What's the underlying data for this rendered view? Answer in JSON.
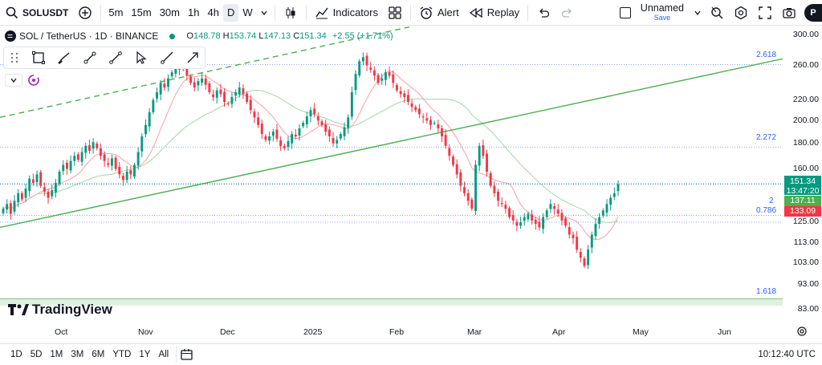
{
  "topbar": {
    "symbol": "SOLUSDT",
    "timeframes": [
      "5m",
      "15m",
      "30m",
      "1h",
      "4h",
      "D",
      "W"
    ],
    "active_timeframe": "D",
    "indicators_label": "Indicators",
    "alert_label": "Alert",
    "replay_label": "Replay",
    "layout_name": "Unnamed",
    "save_label": "Save",
    "avatar_letter": "P"
  },
  "legend": {
    "symbol": "SOL / TetherUS · 1D · BINANCE",
    "o_label": "O",
    "o": "148.78",
    "h_label": "H",
    "h": "153.74",
    "l_label": "L",
    "l": "147.13",
    "c_label": "C",
    "c": "151.34",
    "change": "+2.55 (+1.71%)"
  },
  "price_axis": {
    "labels": [
      "300.00",
      "260.00",
      "220.00",
      "200.00",
      "180.00",
      "160.00",
      "125.00",
      "113.00",
      "103.00",
      "93.00",
      "83.00"
    ]
  },
  "badges": {
    "last_price": "151.34",
    "countdown": "13:47:20",
    "ma_fast": "137.11",
    "ma_slow": "133.09"
  },
  "fib": {
    "l2618": "2.618",
    "l2272": "2.272",
    "l2": "2",
    "l0786": "0.786",
    "l1618": "1.618"
  },
  "time_axis": {
    "labels": [
      "Oct",
      "Nov",
      "Dec",
      "2025",
      "Feb",
      "Mar",
      "Apr",
      "May",
      "Jun"
    ]
  },
  "bottombar": {
    "ranges": [
      "1D",
      "5D",
      "1M",
      "3M",
      "6M",
      "YTD",
      "1Y",
      "All"
    ],
    "clock": "10:12:40 UTC"
  },
  "brand": {
    "name": "TradingView"
  },
  "colors": {
    "up": "#089981",
    "down": "#f23645",
    "trend": "#4caf50",
    "fib": "#2962ff",
    "ma_fast": "#f7a1a7",
    "ma_slow": "#a5d6a7"
  },
  "chart_data": {
    "type": "candlestick",
    "title": "SOL / TetherUS · 1D · BINANCE",
    "ylim": [
      83,
      305
    ],
    "last": {
      "open": 148.78,
      "high": 153.74,
      "low": 147.13,
      "close": 151.34
    },
    "x_ticks": [
      "Oct",
      "Nov",
      "Dec",
      "2025",
      "Feb",
      "Mar",
      "Apr",
      "May",
      "Jun"
    ],
    "closes": [
      135,
      138,
      132,
      140,
      145,
      141,
      148,
      155,
      152,
      158,
      150,
      146,
      142,
      147,
      152,
      160,
      165,
      162,
      168,
      172,
      169,
      175,
      180,
      176,
      183,
      178,
      172,
      168,
      165,
      170,
      162,
      158,
      154,
      160,
      158,
      165,
      175,
      188,
      198,
      210,
      222,
      230,
      240,
      235,
      245,
      252,
      258,
      255,
      262,
      248,
      240,
      235,
      242,
      245,
      238,
      230,
      225,
      232,
      228,
      220,
      218,
      225,
      230,
      235,
      228,
      220,
      212,
      205,
      198,
      190,
      185,
      188,
      192,
      186,
      180,
      178,
      184,
      190,
      188,
      195,
      200,
      206,
      212,
      208,
      202,
      198,
      192,
      188,
      182,
      185,
      190,
      196,
      205,
      230,
      250,
      265,
      270,
      260,
      255,
      248,
      240,
      245,
      252,
      248,
      240,
      232,
      228,
      225,
      220,
      215,
      212,
      208,
      205,
      202,
      198,
      200,
      195,
      188,
      180,
      172,
      165,
      158,
      150,
      145,
      140,
      135,
      165,
      180,
      172,
      160,
      150,
      145,
      140,
      138,
      135,
      130,
      128,
      125,
      127,
      130,
      132,
      128,
      126,
      124,
      130,
      134,
      138,
      135,
      132,
      128,
      125,
      120,
      118,
      112,
      108,
      104,
      112,
      120,
      126,
      130,
      134,
      138,
      142,
      145,
      151
    ]
  }
}
